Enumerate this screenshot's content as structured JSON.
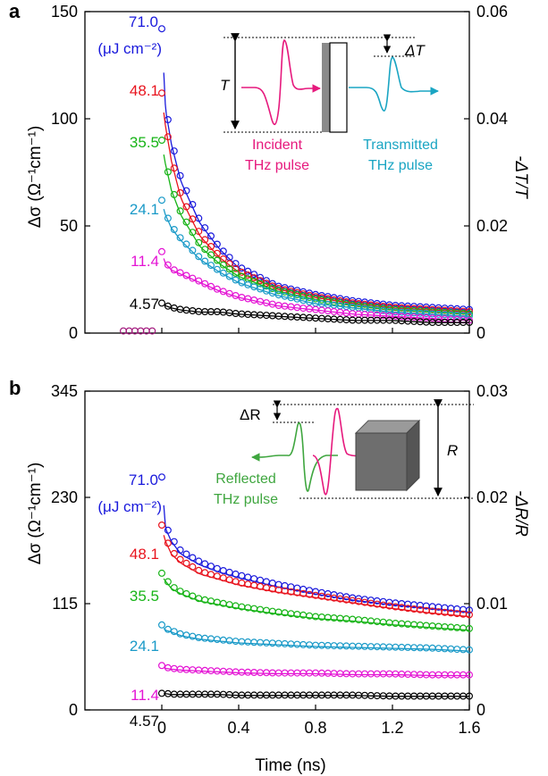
{
  "colors": {
    "s0": "#1a1adc",
    "s1": "#e8141e",
    "s2": "#18b418",
    "s3": "#1a9ac8",
    "s4": "#e414d4",
    "s5": "#000000",
    "incident": "#e6197d",
    "transmitted": "#1aa5c3",
    "reflected": "#3fa63f",
    "axis": "#000000",
    "block": "#6e6e6e"
  },
  "panels": [
    {
      "letter": "a",
      "ylabel_left": "Δσ (Ω⁻¹cm⁻¹)",
      "ylabel_right": "-ΔT/T",
      "yticks_left": [
        "0",
        "50",
        "100",
        "150"
      ],
      "yticks_right": [
        "0",
        "0.02",
        "0.04",
        "0.06"
      ],
      "fluence_labels": [
        "71.0",
        "48.1",
        "35.5",
        "24.1",
        "11.4",
        "4.57"
      ],
      "unit_label": "(μJ cm⁻²)",
      "inset": {
        "T_label": "T",
        "dT_label": "ΔT",
        "incident_label": [
          "Incident",
          "THz pulse"
        ],
        "transmitted_label": [
          "Transmitted",
          "THz pulse"
        ]
      }
    },
    {
      "letter": "b",
      "ylabel_left": "Δσ (Ω⁻¹cm⁻¹)",
      "ylabel_right": "-ΔR/R",
      "yticks_left": [
        "0",
        "115",
        "230",
        "345"
      ],
      "yticks_right": [
        "0",
        "0.01",
        "0.02",
        "0.03"
      ],
      "fluence_labels": [
        "71.0",
        "48.1",
        "35.5",
        "24.1",
        "11.4",
        "4.57"
      ],
      "unit_label": "(μJ cm⁻²)",
      "inset": {
        "R_label": "R",
        "dR_label": "ΔR",
        "reflected_label": [
          "Reflected",
          "THz pulse"
        ]
      }
    }
  ],
  "xaxis": {
    "label": "Time (ns)",
    "ticks": [
      "0",
      "0.4",
      "0.8",
      "1.2",
      "1.6"
    ]
  },
  "chart_data": [
    {
      "type": "scatter",
      "panel": "a",
      "xlabel": "",
      "ylabel": "Δσ (Ω⁻¹cm⁻¹)",
      "ylabel_right": "-ΔT/T",
      "xlim": [
        -0.4,
        1.6
      ],
      "ylim": [
        0,
        150
      ],
      "ylim_right": [
        0,
        0.06
      ],
      "x": [
        0.0,
        0.02,
        0.05,
        0.1,
        0.2,
        0.3,
        0.4,
        0.6,
        0.8,
        1.0,
        1.2,
        1.4,
        1.6
      ],
      "pre_zero_points": {
        "x": [
          -0.2,
          -0.17,
          -0.14,
          -0.11,
          -0.08,
          -0.05
        ],
        "y": [
          1,
          1,
          1,
          1,
          1,
          1
        ]
      },
      "series": [
        {
          "name": "71.0",
          "values": [
            142,
            106,
            90,
            72,
            52,
            40,
            31,
            22,
            18,
            15,
            13,
            12,
            11
          ]
        },
        {
          "name": "48.1",
          "values": [
            112,
            98,
            82,
            64,
            46,
            36,
            29,
            21,
            17,
            14,
            12,
            11,
            10
          ]
        },
        {
          "name": "35.5",
          "values": [
            90,
            80,
            68,
            56,
            41,
            33,
            27,
            20,
            16,
            13,
            11,
            10,
            9
          ]
        },
        {
          "name": "24.1",
          "values": [
            62,
            56,
            50,
            44,
            35,
            29,
            24,
            18,
            14,
            12,
            10,
            9,
            8
          ]
        },
        {
          "name": "11.4",
          "values": [
            38,
            33,
            30,
            28,
            24,
            20,
            17,
            13,
            11,
            9,
            8,
            7,
            6
          ]
        },
        {
          "name": "4.57",
          "values": [
            14,
            13,
            12,
            11,
            10,
            10,
            9,
            8,
            7,
            6,
            6,
            5,
            5
          ]
        }
      ]
    },
    {
      "type": "scatter",
      "panel": "b",
      "xlabel": "Time (ns)",
      "ylabel": "Δσ (Ω⁻¹cm⁻¹)",
      "ylabel_right": "-ΔR/R",
      "xlim": [
        -0.4,
        1.6
      ],
      "ylim": [
        0,
        345
      ],
      "ylim_right": [
        0,
        0.03
      ],
      "x": [
        0.0,
        0.02,
        0.05,
        0.1,
        0.2,
        0.3,
        0.4,
        0.6,
        0.8,
        1.0,
        1.2,
        1.4,
        1.6
      ],
      "series": [
        {
          "name": "71.0",
          "values": [
            252,
            200,
            186,
            172,
            160,
            152,
            146,
            136,
            128,
            121,
            116,
            112,
            108
          ]
        },
        {
          "name": "48.1",
          "values": [
            200,
            186,
            172,
            162,
            150,
            144,
            138,
            130,
            124,
            118,
            112,
            107,
            103
          ]
        },
        {
          "name": "35.5",
          "values": [
            148,
            142,
            134,
            128,
            120,
            116,
            112,
            106,
            101,
            98,
            94,
            91,
            88
          ]
        },
        {
          "name": "24.1",
          "values": [
            92,
            88,
            86,
            82,
            78,
            76,
            74,
            72,
            70,
            69,
            68,
            67,
            65
          ]
        },
        {
          "name": "11.4",
          "values": [
            48,
            46,
            45,
            44,
            43,
            42,
            41,
            40,
            40,
            39,
            39,
            38,
            38
          ]
        },
        {
          "name": "4.57",
          "values": [
            18,
            18,
            17,
            17,
            17,
            17,
            16,
            16,
            16,
            16,
            15,
            15,
            15
          ]
        }
      ]
    }
  ]
}
